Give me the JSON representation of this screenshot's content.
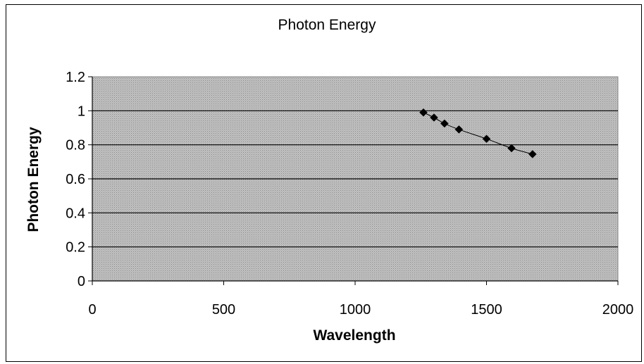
{
  "chart_data": {
    "type": "scatter",
    "title": "Photon Energy",
    "xlabel": "Wavelength",
    "ylabel": "Photon Energy",
    "xlim": [
      0,
      2000
    ],
    "ylim": [
      0,
      1.2
    ],
    "x_ticks": [
      "0",
      "500",
      "1000",
      "1500",
      "2000"
    ],
    "y_ticks": [
      "0",
      "0.2",
      "0.4",
      "0.6",
      "0.8",
      "1",
      "1.2"
    ],
    "grid": "horizontal",
    "legend": "none",
    "plot_background": "#b4b4b4",
    "series": [
      {
        "marker": "diamond",
        "line": "smooth",
        "color": "#000000",
        "x": [
          1260,
          1300,
          1340,
          1395,
          1500,
          1595,
          1675
        ],
        "y": [
          0.99,
          0.96,
          0.925,
          0.89,
          0.835,
          0.78,
          0.745
        ]
      }
    ]
  }
}
